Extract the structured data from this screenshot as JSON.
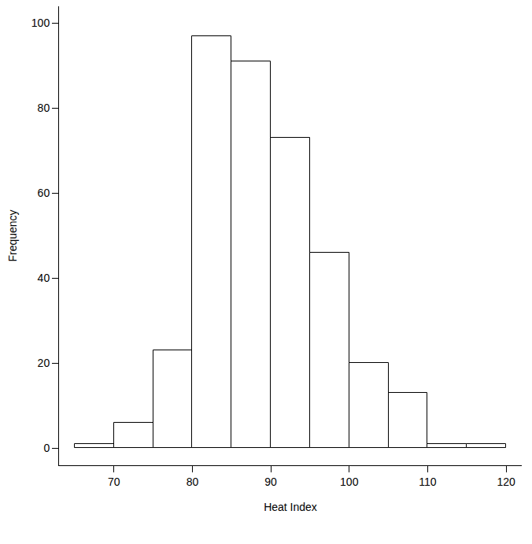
{
  "chart_data": {
    "type": "histogram",
    "x_label": "Heat Index",
    "y_label": "Frequency",
    "bins": [
      65,
      70,
      75,
      80,
      85,
      90,
      95,
      100,
      105,
      110,
      115,
      120
    ],
    "values": [
      1,
      6,
      23,
      97,
      91,
      73,
      46,
      20,
      13,
      1,
      1
    ],
    "color": "#ffffff",
    "xlim": [
      63,
      122
    ],
    "xticks": [
      70,
      80,
      90,
      100,
      110,
      120
    ],
    "ylim": [
      -4,
      104
    ],
    "yticks": [
      0,
      20,
      40,
      60,
      80,
      100
    ],
    "grid": false
  }
}
